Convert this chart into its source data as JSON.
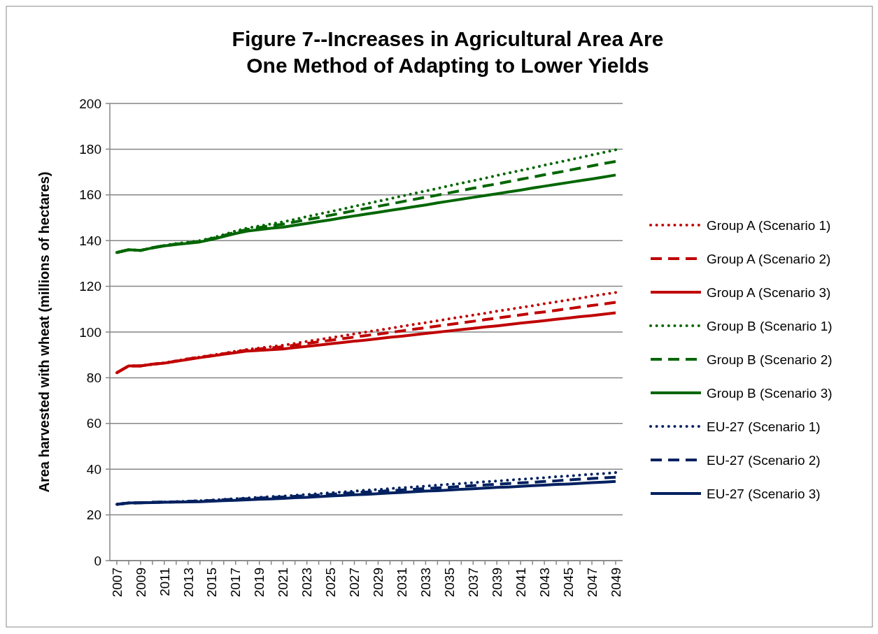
{
  "chart_data": {
    "type": "line",
    "title": "Figure 7--Increases in Agricultural Area Are One Method of Adapting to Lower Yields",
    "ylabel": "Area harvested with wheat (millions of hectares)",
    "categories": [
      "2007",
      null,
      "2009",
      null,
      "2011",
      null,
      "2013",
      null,
      "2015",
      null,
      "2017",
      null,
      "2019",
      null,
      "2021",
      null,
      "2023",
      null,
      "2025",
      null,
      "2027",
      null,
      "2029",
      null,
      "2031",
      null,
      "2033",
      null,
      "2035",
      null,
      "2037",
      null,
      "2039",
      null,
      "2041",
      null,
      "2043",
      null,
      "2045",
      null,
      "2047",
      null,
      "2049"
    ],
    "ylim": [
      0,
      200
    ],
    "yticks": [
      0,
      20,
      40,
      60,
      80,
      100,
      120,
      140,
      160,
      180,
      200
    ],
    "grid": "y",
    "legend": "right",
    "marker": "none",
    "series": [
      {
        "name": "Group A (Scenario 1)",
        "color": "#c00000",
        "line_style": "dotted",
        "values": [
          82.2,
          85.2,
          85.2,
          85.9,
          86.5,
          87.4,
          88.3,
          89.1,
          89.9,
          90.7,
          91.6,
          92.4,
          93.0,
          93.6,
          94.2,
          95.0,
          95.9,
          96.7,
          97.5,
          98.3,
          99.2,
          100.0,
          100.8,
          101.6,
          102.5,
          103.3,
          104.1,
          104.9,
          105.8,
          106.6,
          107.4,
          108.2,
          109.1,
          109.9,
          110.7,
          111.5,
          112.4,
          113.2,
          114.0,
          114.8,
          115.7,
          116.5,
          117.3
        ]
      },
      {
        "name": "Group A (Scenario 2)",
        "color": "#c00000",
        "line_style": "dashed",
        "values": [
          82.2,
          85.2,
          85.2,
          85.9,
          86.4,
          87.3,
          88.2,
          89.0,
          89.7,
          90.5,
          91.3,
          92.1,
          92.6,
          93.1,
          93.6,
          94.3,
          95.0,
          95.7,
          96.4,
          97.1,
          97.8,
          98.5,
          99.1,
          99.8,
          100.5,
          101.2,
          101.9,
          102.6,
          103.3,
          104.0,
          104.7,
          105.4,
          106.1,
          106.8,
          107.5,
          108.2,
          108.8,
          109.5,
          110.2,
          110.9,
          111.6,
          112.3,
          113.0
        ]
      },
      {
        "name": "Group A (Scenario 3)",
        "color": "#c00000",
        "line_style": "solid",
        "values": [
          82.2,
          85.2,
          85.2,
          85.9,
          86.4,
          87.2,
          88.0,
          88.8,
          89.5,
          90.3,
          91.0,
          91.7,
          92.0,
          92.3,
          92.6,
          93.2,
          93.7,
          94.3,
          94.9,
          95.4,
          96.0,
          96.5,
          97.1,
          97.7,
          98.2,
          98.8,
          99.4,
          99.9,
          100.5,
          101.1,
          101.6,
          102.2,
          102.7,
          103.3,
          103.9,
          104.4,
          105.0,
          105.6,
          106.1,
          106.7,
          107.2,
          107.8,
          108.4
        ]
      },
      {
        "name": "Group B (Scenario 1)",
        "color": "#006600",
        "line_style": "dotted",
        "values": [
          134.8,
          136.0,
          135.7,
          136.9,
          137.9,
          138.7,
          139.3,
          140.0,
          141.2,
          142.6,
          144.2,
          145.5,
          146.4,
          147.3,
          148.2,
          149.3,
          150.5,
          151.6,
          152.7,
          153.8,
          155.0,
          156.1,
          157.2,
          158.3,
          159.5,
          160.6,
          161.7,
          162.8,
          164.0,
          165.1,
          166.2,
          167.3,
          168.5,
          169.6,
          170.7,
          171.8,
          173.0,
          174.1,
          175.2,
          176.3,
          177.5,
          178.6,
          179.7
        ]
      },
      {
        "name": "Group B (Scenario 2)",
        "color": "#006600",
        "line_style": "dashed",
        "values": [
          134.8,
          136.0,
          135.7,
          136.9,
          137.8,
          138.5,
          139.0,
          139.7,
          140.9,
          142.2,
          143.7,
          144.9,
          145.7,
          146.5,
          147.2,
          148.2,
          149.2,
          150.1,
          151.1,
          152.1,
          153.1,
          154.1,
          155.0,
          156.0,
          157.0,
          158.0,
          159.0,
          159.9,
          160.9,
          161.9,
          162.9,
          163.9,
          164.8,
          165.8,
          166.8,
          167.8,
          168.8,
          169.7,
          170.7,
          171.7,
          172.7,
          173.7,
          174.6
        ]
      },
      {
        "name": "Group B (Scenario 3)",
        "color": "#006600",
        "line_style": "solid",
        "values": [
          134.8,
          136.0,
          135.7,
          136.8,
          137.7,
          138.3,
          138.8,
          139.4,
          140.5,
          141.8,
          143.1,
          144.2,
          144.8,
          145.4,
          145.9,
          146.7,
          147.5,
          148.3,
          149.1,
          150.0,
          150.8,
          151.6,
          152.4,
          153.2,
          154.0,
          154.8,
          155.6,
          156.5,
          157.3,
          158.1,
          158.9,
          159.7,
          160.5,
          161.3,
          162.1,
          163.0,
          163.8,
          164.6,
          165.4,
          166.2,
          167.0,
          167.8,
          168.7
        ]
      },
      {
        "name": "EU-27 (Scenario 1)",
        "color": "#002060",
        "line_style": "dotted",
        "values": [
          24.6,
          25.2,
          25.3,
          25.5,
          25.6,
          25.8,
          26.0,
          26.2,
          26.5,
          26.8,
          27.1,
          27.4,
          27.7,
          28.0,
          28.2,
          28.6,
          28.9,
          29.3,
          29.7,
          30.0,
          30.4,
          30.8,
          31.1,
          31.5,
          31.9,
          32.2,
          32.6,
          33.0,
          33.4,
          33.7,
          34.1,
          34.5,
          34.8,
          35.2,
          35.6,
          35.9,
          36.3,
          36.7,
          37.0,
          37.4,
          37.8,
          38.1,
          38.5
        ]
      },
      {
        "name": "EU-27 (Scenario 2)",
        "color": "#002060",
        "line_style": "dashed",
        "values": [
          24.6,
          25.2,
          25.3,
          25.5,
          25.6,
          25.7,
          25.9,
          26.1,
          26.3,
          26.6,
          26.9,
          27.1,
          27.4,
          27.6,
          27.8,
          28.1,
          28.4,
          28.7,
          29.0,
          29.4,
          29.7,
          30.0,
          30.3,
          30.6,
          30.9,
          31.2,
          31.5,
          31.8,
          32.1,
          32.5,
          32.8,
          33.1,
          33.4,
          33.7,
          34.0,
          34.3,
          34.6,
          34.9,
          35.3,
          35.6,
          35.9,
          36.2,
          36.5
        ]
      },
      {
        "name": "EU-27 (Scenario 3)",
        "color": "#002060",
        "line_style": "solid",
        "values": [
          24.6,
          25.2,
          25.3,
          25.4,
          25.5,
          25.6,
          25.7,
          25.8,
          26.0,
          26.2,
          26.4,
          26.6,
          26.8,
          27.0,
          27.2,
          27.5,
          27.7,
          28.0,
          28.3,
          28.5,
          28.8,
          29.0,
          29.3,
          29.6,
          29.8,
          30.1,
          30.4,
          30.6,
          30.9,
          31.2,
          31.4,
          31.7,
          32.0,
          32.2,
          32.5,
          32.8,
          33.0,
          33.3,
          33.5,
          33.8,
          34.1,
          34.3,
          34.6
        ]
      }
    ]
  }
}
